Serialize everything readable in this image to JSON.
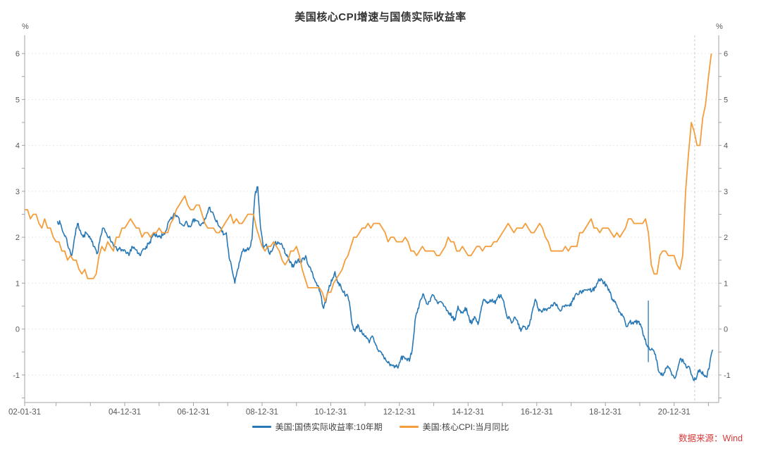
{
  "title": "美国核心CPI增速与国债实际收益率",
  "source": "数据来源：Wind",
  "colors": {
    "real_yield_line": "#2878B5",
    "core_cpi_line": "#F49D3B",
    "grid": "#E7E7E7",
    "axis": "#A3A3A3",
    "tick_text": "#595959",
    "title_text": "#333333",
    "source_red": "#D93B38",
    "cursor_line": "#CBCBCB",
    "legend_text": "#404040"
  },
  "chart_data": {
    "type": "line",
    "title": "美国核心CPI增速与国债实际收益率",
    "y_unit": "%",
    "ylim": [
      -1.6,
      6.4
    ],
    "xlim": [
      2002.085,
      2022.3
    ],
    "grid": "horizontal-dashed",
    "legend_position": "bottom-center",
    "y_major_ticks": [
      -1,
      0,
      1,
      2,
      3,
      4,
      5,
      6
    ],
    "y_minor_ticks": [
      -1.5,
      -0.5,
      0.5,
      1.5,
      2.5,
      3.5,
      4.5,
      5.5
    ],
    "x_major_ticks": [
      {
        "t": 2002.085,
        "label": "02-01-31"
      },
      {
        "t": 2005.0,
        "label": "04-12-31"
      },
      {
        "t": 2007.0,
        "label": "06-12-31"
      },
      {
        "t": 2009.0,
        "label": "08-12-31"
      },
      {
        "t": 2011.0,
        "label": "10-12-31"
      },
      {
        "t": 2013.0,
        "label": "12-12-31"
      },
      {
        "t": 2015.0,
        "label": "14-12-31"
      },
      {
        "t": 2017.0,
        "label": "16-12-31"
      },
      {
        "t": 2019.0,
        "label": "18-12-31"
      },
      {
        "t": 2021.0,
        "label": "20-12-31"
      }
    ],
    "x_minor_ticks": [
      2003,
      2004,
      2006,
      2008,
      2010,
      2012,
      2014,
      2016,
      2018,
      2020,
      2022
    ],
    "cursor_line_t": 2021.6,
    "series": [
      {
        "name": "美国:国债实际收益率:10年期",
        "color": "#2878B5",
        "frequency": "monthly (daily in source, rendered with jitter)",
        "start": 2003.04,
        "step_years": 0.0833333,
        "covid_spike": {
          "t": 2020.25,
          "low": -0.72,
          "high": 0.62
        },
        "values": [
          2.35,
          2.3,
          2.1,
          2.0,
          1.75,
          1.6,
          2.0,
          2.3,
          2.15,
          2.0,
          2.1,
          2.0,
          1.9,
          1.8,
          1.65,
          2.0,
          2.2,
          2.1,
          2.0,
          1.9,
          1.8,
          1.7,
          1.75,
          1.7,
          1.65,
          1.6,
          1.8,
          1.75,
          1.65,
          1.6,
          1.75,
          1.8,
          1.85,
          2.0,
          2.05,
          2.0,
          2.0,
          2.05,
          2.15,
          2.35,
          2.4,
          2.5,
          2.45,
          2.3,
          2.25,
          2.35,
          2.25,
          2.3,
          2.4,
          2.35,
          2.25,
          2.3,
          2.45,
          2.65,
          2.55,
          2.4,
          2.3,
          2.2,
          2.05,
          2.1,
          1.55,
          1.3,
          1.0,
          1.3,
          1.55,
          1.75,
          1.7,
          1.75,
          1.95,
          2.9,
          3.1,
          2.2,
          1.75,
          1.85,
          1.65,
          1.7,
          1.85,
          1.9,
          1.85,
          1.75,
          1.6,
          1.5,
          1.35,
          1.45,
          1.5,
          1.45,
          1.55,
          1.55,
          1.35,
          1.25,
          1.05,
          0.95,
          0.75,
          0.45,
          0.65,
          0.95,
          1.05,
          1.25,
          1.0,
          0.95,
          0.8,
          0.75,
          0.6,
          0.1,
          -0.05,
          0.1,
          -0.05,
          -0.1,
          -0.2,
          -0.3,
          -0.15,
          -0.3,
          -0.45,
          -0.5,
          -0.6,
          -0.7,
          -0.75,
          -0.8,
          -0.8,
          -0.85,
          -0.65,
          -0.6,
          -0.65,
          -0.7,
          -0.45,
          0.2,
          0.45,
          0.65,
          0.75,
          0.55,
          0.6,
          0.75,
          0.65,
          0.55,
          0.6,
          0.5,
          0.4,
          0.35,
          0.25,
          0.2,
          0.5,
          0.35,
          0.4,
          0.45,
          0.2,
          0.15,
          0.25,
          0.1,
          0.4,
          0.65,
          0.6,
          0.6,
          0.65,
          0.55,
          0.7,
          0.75,
          0.6,
          0.3,
          0.25,
          0.15,
          0.25,
          0.1,
          -0.05,
          0.05,
          0.0,
          0.1,
          0.4,
          0.65,
          0.45,
          0.4,
          0.45,
          0.4,
          0.45,
          0.5,
          0.55,
          0.45,
          0.4,
          0.5,
          0.5,
          0.5,
          0.6,
          0.75,
          0.75,
          0.8,
          0.85,
          0.85,
          0.85,
          0.85,
          0.9,
          1.05,
          1.1,
          1.0,
          0.95,
          0.8,
          0.65,
          0.6,
          0.45,
          0.3,
          0.25,
          0.05,
          0.15,
          0.15,
          0.15,
          0.15,
          0.05,
          -0.15,
          -0.35,
          -0.45,
          -0.45,
          -0.55,
          -0.9,
          -1.0,
          -0.95,
          -0.85,
          -0.85,
          -1.0,
          -1.05,
          -0.8,
          -0.65,
          -0.75,
          -0.85,
          -0.85,
          -1.05,
          -1.1,
          -0.9,
          -0.95,
          -1.0,
          -1.05,
          -0.75,
          -0.45
        ]
      },
      {
        "name": "美国:核心CPI:当月同比",
        "color": "#F49D3B",
        "frequency": "monthly",
        "start": 2002.085,
        "step_years": 0.0833333,
        "values": [
          2.6,
          2.6,
          2.4,
          2.5,
          2.5,
          2.3,
          2.2,
          2.4,
          2.2,
          2.2,
          2.0,
          1.9,
          1.9,
          1.7,
          1.7,
          1.5,
          1.6,
          1.5,
          1.5,
          1.3,
          1.2,
          1.3,
          1.1,
          1.1,
          1.1,
          1.2,
          1.6,
          1.8,
          1.7,
          1.9,
          1.8,
          1.7,
          2.0,
          2.0,
          2.2,
          2.2,
          2.3,
          2.4,
          2.3,
          2.2,
          2.2,
          2.0,
          2.1,
          2.1,
          2.0,
          2.1,
          2.1,
          2.2,
          2.1,
          2.1,
          2.1,
          2.3,
          2.4,
          2.6,
          2.7,
          2.8,
          2.9,
          2.7,
          2.6,
          2.6,
          2.7,
          2.7,
          2.5,
          2.3,
          2.2,
          2.2,
          2.2,
          2.1,
          2.1,
          2.2,
          2.3,
          2.4,
          2.5,
          2.3,
          2.4,
          2.3,
          2.3,
          2.4,
          2.5,
          2.5,
          2.5,
          2.2,
          2.0,
          1.8,
          1.7,
          1.8,
          1.8,
          1.9,
          1.8,
          1.7,
          1.5,
          1.4,
          1.5,
          1.7,
          1.7,
          1.8,
          1.6,
          1.3,
          1.1,
          0.9,
          0.9,
          0.9,
          0.9,
          0.9,
          0.8,
          0.6,
          0.8,
          0.8,
          1.0,
          1.1,
          1.2,
          1.3,
          1.5,
          1.6,
          1.8,
          2.0,
          2.0,
          2.1,
          2.2,
          2.2,
          2.3,
          2.2,
          2.3,
          2.3,
          2.3,
          2.2,
          2.1,
          1.9,
          2.0,
          2.0,
          1.9,
          1.9,
          1.9,
          2.0,
          1.9,
          1.7,
          1.7,
          1.6,
          1.7,
          1.8,
          1.7,
          1.7,
          1.7,
          1.7,
          1.6,
          1.6,
          1.7,
          1.8,
          2.0,
          1.9,
          1.9,
          1.7,
          1.7,
          1.8,
          1.7,
          1.6,
          1.6,
          1.7,
          1.8,
          1.8,
          1.7,
          1.8,
          1.8,
          1.8,
          1.9,
          1.9,
          2.0,
          2.1,
          2.2,
          2.3,
          2.2,
          2.1,
          2.2,
          2.2,
          2.2,
          2.3,
          2.2,
          2.1,
          2.1,
          2.2,
          2.3,
          2.2,
          2.0,
          1.9,
          1.7,
          1.7,
          1.7,
          1.7,
          1.7,
          1.8,
          1.7,
          1.8,
          1.8,
          1.8,
          2.1,
          2.1,
          2.2,
          2.3,
          2.4,
          2.2,
          2.2,
          2.1,
          2.2,
          2.2,
          2.2,
          2.1,
          2.0,
          2.1,
          2.0,
          2.1,
          2.2,
          2.4,
          2.4,
          2.3,
          2.3,
          2.3,
          2.3,
          2.4,
          2.1,
          1.4,
          1.2,
          1.2,
          1.6,
          1.7,
          1.7,
          1.6,
          1.6,
          1.6,
          1.4,
          1.3,
          1.6,
          3.0,
          3.8,
          4.5,
          4.3,
          4.0,
          4.0,
          4.6,
          4.9,
          5.5,
          6.0
        ]
      }
    ]
  }
}
